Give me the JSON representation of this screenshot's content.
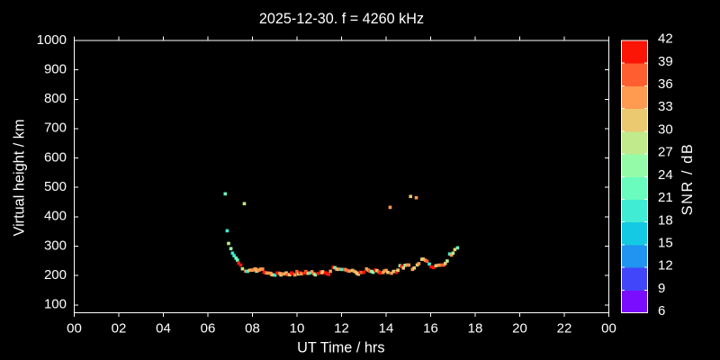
{
  "title": "2025-12-30. f = 4260 kHz",
  "chart_data": {
    "type": "scatter",
    "title": "2025-12-30. f = 4260 kHz",
    "xlabel": "UT Time / hrs",
    "ylabel": "Virtual height / km",
    "xlim": [
      0,
      24
    ],
    "ylim": [
      73.5,
      1000
    ],
    "x_ticks": [
      {
        "value": 0,
        "label": "00"
      },
      {
        "value": 2,
        "label": "02"
      },
      {
        "value": 4,
        "label": "04"
      },
      {
        "value": 6,
        "label": "06"
      },
      {
        "value": 8,
        "label": "08"
      },
      {
        "value": 10,
        "label": "10"
      },
      {
        "value": 12,
        "label": "12"
      },
      {
        "value": 14,
        "label": "14"
      },
      {
        "value": 16,
        "label": "16"
      },
      {
        "value": 18,
        "label": "18"
      },
      {
        "value": 20,
        "label": "20"
      },
      {
        "value": 22,
        "label": "22"
      },
      {
        "value": 24,
        "label": "00"
      }
    ],
    "y_ticks": [
      100,
      200,
      300,
      400,
      500,
      600,
      700,
      800,
      900,
      1000
    ],
    "grid": false,
    "background": "#000000",
    "frame_color": "#ffffff",
    "text_color": "#ffffff",
    "marker": "square",
    "marker_size_px": 3.6,
    "colorbar": {
      "label": "SNR / dB",
      "min": 6,
      "max": 42,
      "step": 3,
      "tick_labels": [
        "6",
        "9",
        "12",
        "15",
        "18",
        "21",
        "24",
        "27",
        "30",
        "33",
        "36",
        "39",
        "42"
      ],
      "segment_colors": [
        "#7A0DFE",
        "#4146FA",
        "#2193F0",
        "#14C9E4",
        "#40ECD3",
        "#6AFCBF",
        "#94FCA8",
        "#C0EA8C",
        "#EAC970",
        "#FF9A51",
        "#FF5F30",
        "#FB1507"
      ]
    },
    "points": [
      [
        6.78,
        478.1,
        22.5
      ],
      [
        7.636,
        444.7,
        28.5
      ],
      [
        6.865,
        352.5,
        19.5
      ],
      [
        14.182,
        432.2,
        34.5
      ],
      [
        15.099,
        469.2,
        31.5
      ],
      [
        15.354,
        464.9,
        34.5
      ],
      [
        6.929,
        309.3,
        28.5
      ],
      [
        7.034,
        291.6,
        25.5
      ],
      [
        7.107,
        276.3,
        19.5
      ],
      [
        7.176,
        267.7,
        19.5
      ],
      [
        7.261,
        259.4,
        22.5
      ],
      [
        7.325,
        252.7,
        22.5
      ],
      [
        7.382,
        242.6,
        40.5
      ],
      [
        7.471,
        235.8,
        40.5
      ],
      [
        7.552,
        223.0,
        28.5
      ],
      [
        7.701,
        215.0,
        34.5
      ],
      [
        7.778,
        214.4,
        19.5
      ],
      [
        7.867,
        217.8,
        31.5
      ],
      [
        7.939,
        218.7,
        34.5
      ],
      [
        8.02,
        218.4,
        34.5
      ],
      [
        8.109,
        222.7,
        34.5
      ],
      [
        8.166,
        221.4,
        34.5
      ],
      [
        8.186,
        215.0,
        28.5
      ],
      [
        8.238,
        217.5,
        34.5
      ],
      [
        8.307,
        219.0,
        34.5
      ],
      [
        8.376,
        222.0,
        34.5
      ],
      [
        8.457,
        222.0,
        34.5
      ],
      [
        8.517,
        211.6,
        40.5
      ],
      [
        8.574,
        209.8,
        40.5
      ],
      [
        8.638,
        208.9,
        34.5
      ],
      [
        8.731,
        208.3,
        34.5
      ],
      [
        8.824,
        207.7,
        34.5
      ],
      [
        8.869,
        203.1,
        34.5
      ],
      [
        8.921,
        202.4,
        31.5
      ],
      [
        9.014,
        201.5,
        19.5
      ],
      [
        9.107,
        208.6,
        40.5
      ],
      [
        9.176,
        208.9,
        40.5
      ],
      [
        9.228,
        207.0,
        34.5
      ],
      [
        9.281,
        202.1,
        31.5
      ],
      [
        9.349,
        205.8,
        34.5
      ],
      [
        9.418,
        205.5,
        34.5
      ],
      [
        9.519,
        208.9,
        31.5
      ],
      [
        9.58,
        203.7,
        37.5
      ],
      [
        9.673,
        202.8,
        31.5
      ],
      [
        9.758,
        208.9,
        40.5
      ],
      [
        9.818,
        206.1,
        40.5
      ],
      [
        9.911,
        202.1,
        34.5
      ],
      [
        9.996,
        213.8,
        37.5
      ],
      [
        10.065,
        205.5,
        31.5
      ],
      [
        10.141,
        209.5,
        40.5
      ],
      [
        10.202,
        206.1,
        34.5
      ],
      [
        10.323,
        208.0,
        40.5
      ],
      [
        10.4,
        213.8,
        37.5
      ],
      [
        10.444,
        208.9,
        40.5
      ],
      [
        10.497,
        207.7,
        31.5
      ],
      [
        10.586,
        208.9,
        19.5
      ],
      [
        10.671,
        212.9,
        34.5
      ],
      [
        10.764,
        206.1,
        34.5
      ],
      [
        10.824,
        202.4,
        25.5
      ],
      [
        10.949,
        207.0,
        40.5
      ],
      [
        11.067,
        212.9,
        40.5
      ],
      [
        11.115,
        209.5,
        34.5
      ],
      [
        11.16,
        212.9,
        31.5
      ],
      [
        11.281,
        209.5,
        40.5
      ],
      [
        11.349,
        206.1,
        40.5
      ],
      [
        11.426,
        203.7,
        40.5
      ],
      [
        11.503,
        214.7,
        34.5
      ],
      [
        11.624,
        227.9,
        40.5
      ],
      [
        11.701,
        226.9,
        22.5
      ],
      [
        11.774,
        222.4,
        34.5
      ],
      [
        11.838,
        221.1,
        31.5
      ],
      [
        11.899,
        221.7,
        34.5
      ],
      [
        12.02,
        220.8,
        19.5
      ],
      [
        12.137,
        221.1,
        37.5
      ],
      [
        12.202,
        219.0,
        34.5
      ],
      [
        12.275,
        216.5,
        37.5
      ],
      [
        12.352,
        215.3,
        34.5
      ],
      [
        12.489,
        217.5,
        31.5
      ],
      [
        12.566,
        214.7,
        34.5
      ],
      [
        12.646,
        211.3,
        31.5
      ],
      [
        12.699,
        207.3,
        31.5
      ],
      [
        12.76,
        204.6,
        31.5
      ],
      [
        12.836,
        211.3,
        40.5
      ],
      [
        12.909,
        210.4,
        37.5
      ],
      [
        13.002,
        211.3,
        40.5
      ],
      [
        13.123,
        222.4,
        34.5
      ],
      [
        13.2,
        218.4,
        34.5
      ],
      [
        13.261,
        215.3,
        37.5
      ],
      [
        13.349,
        214.1,
        25.5
      ],
      [
        13.418,
        211.3,
        25.5
      ],
      [
        13.519,
        219.0,
        40.5
      ],
      [
        13.592,
        216.5,
        31.5
      ],
      [
        13.685,
        211.9,
        37.5
      ],
      [
        13.741,
        208.6,
        40.5
      ],
      [
        13.867,
        210.7,
        34.5
      ],
      [
        13.923,
        215.6,
        34.5
      ],
      [
        14.004,
        217.5,
        34.5
      ],
      [
        14.081,
        210.7,
        31.5
      ],
      [
        14.242,
        208.0,
        34.5
      ],
      [
        14.335,
        214.1,
        31.5
      ],
      [
        14.412,
        214.1,
        31.5
      ],
      [
        14.469,
        211.3,
        40.5
      ],
      [
        14.533,
        218.4,
        31.5
      ],
      [
        14.626,
        233.7,
        25.5
      ],
      [
        14.699,
        231.2,
        40.5
      ],
      [
        14.776,
        225.7,
        31.5
      ],
      [
        14.853,
        234.9,
        25.5
      ],
      [
        14.941,
        236.1,
        34.5
      ],
      [
        15.022,
        235.8,
        34.5
      ],
      [
        15.184,
        221.1,
        34.5
      ],
      [
        15.261,
        225.7,
        31.5
      ],
      [
        15.398,
        236.1,
        31.5
      ],
      [
        15.471,
        240.7,
        34.5
      ],
      [
        15.608,
        255.4,
        31.5
      ],
      [
        15.669,
        256.0,
        31.5
      ],
      [
        15.762,
        252.1,
        34.5
      ],
      [
        15.838,
        248.4,
        37.5
      ],
      [
        15.943,
        239.2,
        19.5
      ],
      [
        16.024,
        230.0,
        40.5
      ],
      [
        16.133,
        227.6,
        40.5
      ],
      [
        16.238,
        233.4,
        31.5
      ],
      [
        16.352,
        235.2,
        34.5
      ],
      [
        16.432,
        235.5,
        34.5
      ],
      [
        16.513,
        235.8,
        37.5
      ],
      [
        16.594,
        236.1,
        37.5
      ],
      [
        16.659,
        241.3,
        31.5
      ],
      [
        16.743,
        249.6,
        28.5
      ],
      [
        16.853,
        273.5,
        19.5
      ],
      [
        16.933,
        269.8,
        34.5
      ],
      [
        17.006,
        276.3,
        28.5
      ],
      [
        17.087,
        288.5,
        31.5
      ],
      [
        17.208,
        294.3,
        22.5
      ]
    ],
    "points_format": [
      "time_hr",
      "virtual_height_km",
      "snr_db"
    ]
  }
}
